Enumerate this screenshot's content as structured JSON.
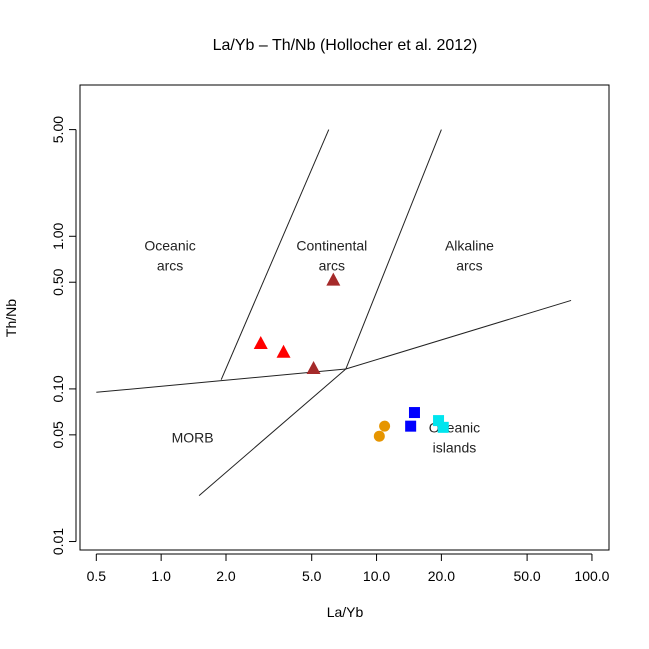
{
  "chart_data": {
    "type": "scatter",
    "title": "La/Yb – Th/Nb (Hollocher et al. 2012)",
    "xlabel": "La/Yb",
    "ylabel": "Th/Nb",
    "xscale": "log",
    "yscale": "log",
    "xlim": [
      0.5,
      100
    ],
    "ylim": [
      0.01,
      10
    ],
    "xticks": [
      0.5,
      1,
      2,
      5,
      10,
      20,
      50,
      100
    ],
    "xtick_labels": [
      "0.5",
      "1.0",
      "2.0",
      "5.0",
      "10.0",
      "20.0",
      "50.0",
      "100.0"
    ],
    "yticks": [
      0.01,
      0.05,
      0.1,
      0.5,
      1,
      5
    ],
    "ytick_labels": [
      "0.01",
      "0.05",
      "0.10",
      "0.50",
      "1.00",
      "5.00"
    ],
    "grid": false,
    "field_labels": [
      {
        "lines": [
          "Oceanic",
          "arcs"
        ],
        "x": 1.1,
        "y": 0.75
      },
      {
        "lines": [
          "Continental",
          "arcs"
        ],
        "x": 6.2,
        "y": 0.75
      },
      {
        "lines": [
          "Alkaline",
          "arcs"
        ],
        "x": 27,
        "y": 0.75
      },
      {
        "lines": [
          "MORB"
        ],
        "x": 1.4,
        "y": 0.048
      },
      {
        "lines": [
          "Oceanic",
          "islands"
        ],
        "x": 23,
        "y": 0.048
      }
    ],
    "boundaries": [
      {
        "x": [
          0.5,
          7.2
        ],
        "y": [
          0.095,
          0.135
        ]
      },
      {
        "x": [
          1.9,
          6.0
        ],
        "y": [
          0.115,
          5.0
        ]
      },
      {
        "x": [
          7.2,
          20.0
        ],
        "y": [
          0.135,
          5.0
        ]
      },
      {
        "x": [
          7.2,
          80.0
        ],
        "y": [
          0.135,
          0.38
        ]
      },
      {
        "x": [
          1.5,
          7.2
        ],
        "y": [
          0.02,
          0.135
        ]
      }
    ],
    "series": [
      {
        "marker": "triangle",
        "color": "#ff0000",
        "points": [
          {
            "x": 2.9,
            "y": 0.2
          },
          {
            "x": 3.7,
            "y": 0.175
          }
        ]
      },
      {
        "marker": "triangle",
        "color": "#a52a2a",
        "points": [
          {
            "x": 6.3,
            "y": 0.52
          },
          {
            "x": 5.1,
            "y": 0.137
          }
        ]
      },
      {
        "marker": "circle",
        "color": "#e69500",
        "points": [
          {
            "x": 10.3,
            "y": 0.049
          },
          {
            "x": 10.9,
            "y": 0.057
          }
        ]
      },
      {
        "marker": "square",
        "color": "#0000ff",
        "points": [
          {
            "x": 15.0,
            "y": 0.07
          },
          {
            "x": 14.4,
            "y": 0.057
          }
        ]
      },
      {
        "marker": "square",
        "color": "#00e5ee",
        "points": [
          {
            "x": 19.4,
            "y": 0.062
          },
          {
            "x": 20.4,
            "y": 0.056
          }
        ]
      }
    ]
  }
}
